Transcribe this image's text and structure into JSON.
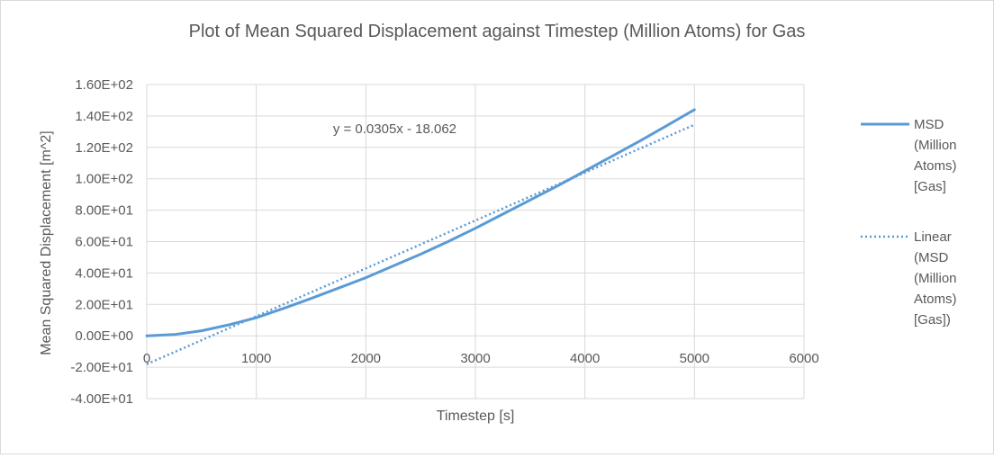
{
  "chart_data": {
    "type": "line",
    "title": "Plot of Mean Squared Displacement against Timestep (Million Atoms) for Gas",
    "xlabel": "Timestep [s]",
    "ylabel": "Mean Squared Displacement [m^2]",
    "xlim": [
      0,
      6000
    ],
    "ylim": [
      -40,
      160
    ],
    "x_ticks": [
      0,
      1000,
      2000,
      3000,
      4000,
      5000,
      6000
    ],
    "x_tick_labels": [
      "0",
      "1000",
      "2000",
      "3000",
      "4000",
      "5000",
      "6000"
    ],
    "y_ticks": [
      -40,
      -20,
      0,
      20,
      40,
      60,
      80,
      100,
      120,
      140,
      160
    ],
    "y_tick_labels": [
      "-4.00E+01",
      "-2.00E+01",
      "0.00E+00",
      "2.00E+01",
      "4.00E+01",
      "6.00E+01",
      "8.00E+01",
      "1.00E+02",
      "1.20E+02",
      "1.40E+02",
      "1.60E+02"
    ],
    "grid": true,
    "legend_position": "right",
    "series": [
      {
        "name": "MSD (Million Atoms) [Gas]",
        "legend_lines": [
          "MSD",
          "(Million",
          "Atoms)",
          "[Gas]"
        ],
        "style": "solid",
        "color": "#5b9bd5",
        "x": [
          0,
          250,
          500,
          750,
          1000,
          1250,
          1500,
          1750,
          2000,
          2250,
          2500,
          2750,
          3000,
          3250,
          3500,
          3750,
          4000,
          4250,
          4500,
          4750,
          5000
        ],
        "y": [
          0,
          0.8,
          3.2,
          7.0,
          11.5,
          17.5,
          23.8,
          30.4,
          37.0,
          44.5,
          52.0,
          60.0,
          68.5,
          77.5,
          86.5,
          95.5,
          105.0,
          114.5,
          124.0,
          134.0,
          144.0
        ]
      },
      {
        "name": "Linear (MSD (Million Atoms) [Gas])",
        "legend_lines": [
          "Linear",
          "(MSD",
          "(Million",
          "Atoms)",
          "[Gas])"
        ],
        "style": "dotted",
        "color": "#5b9bd5",
        "trendline": {
          "slope": 0.0305,
          "intercept": -18.062,
          "x_range": [
            0,
            5000
          ]
        }
      }
    ],
    "annotations": [
      {
        "text": "y = 0.0305x - 18.062",
        "x": 1700,
        "y": 132
      }
    ]
  }
}
